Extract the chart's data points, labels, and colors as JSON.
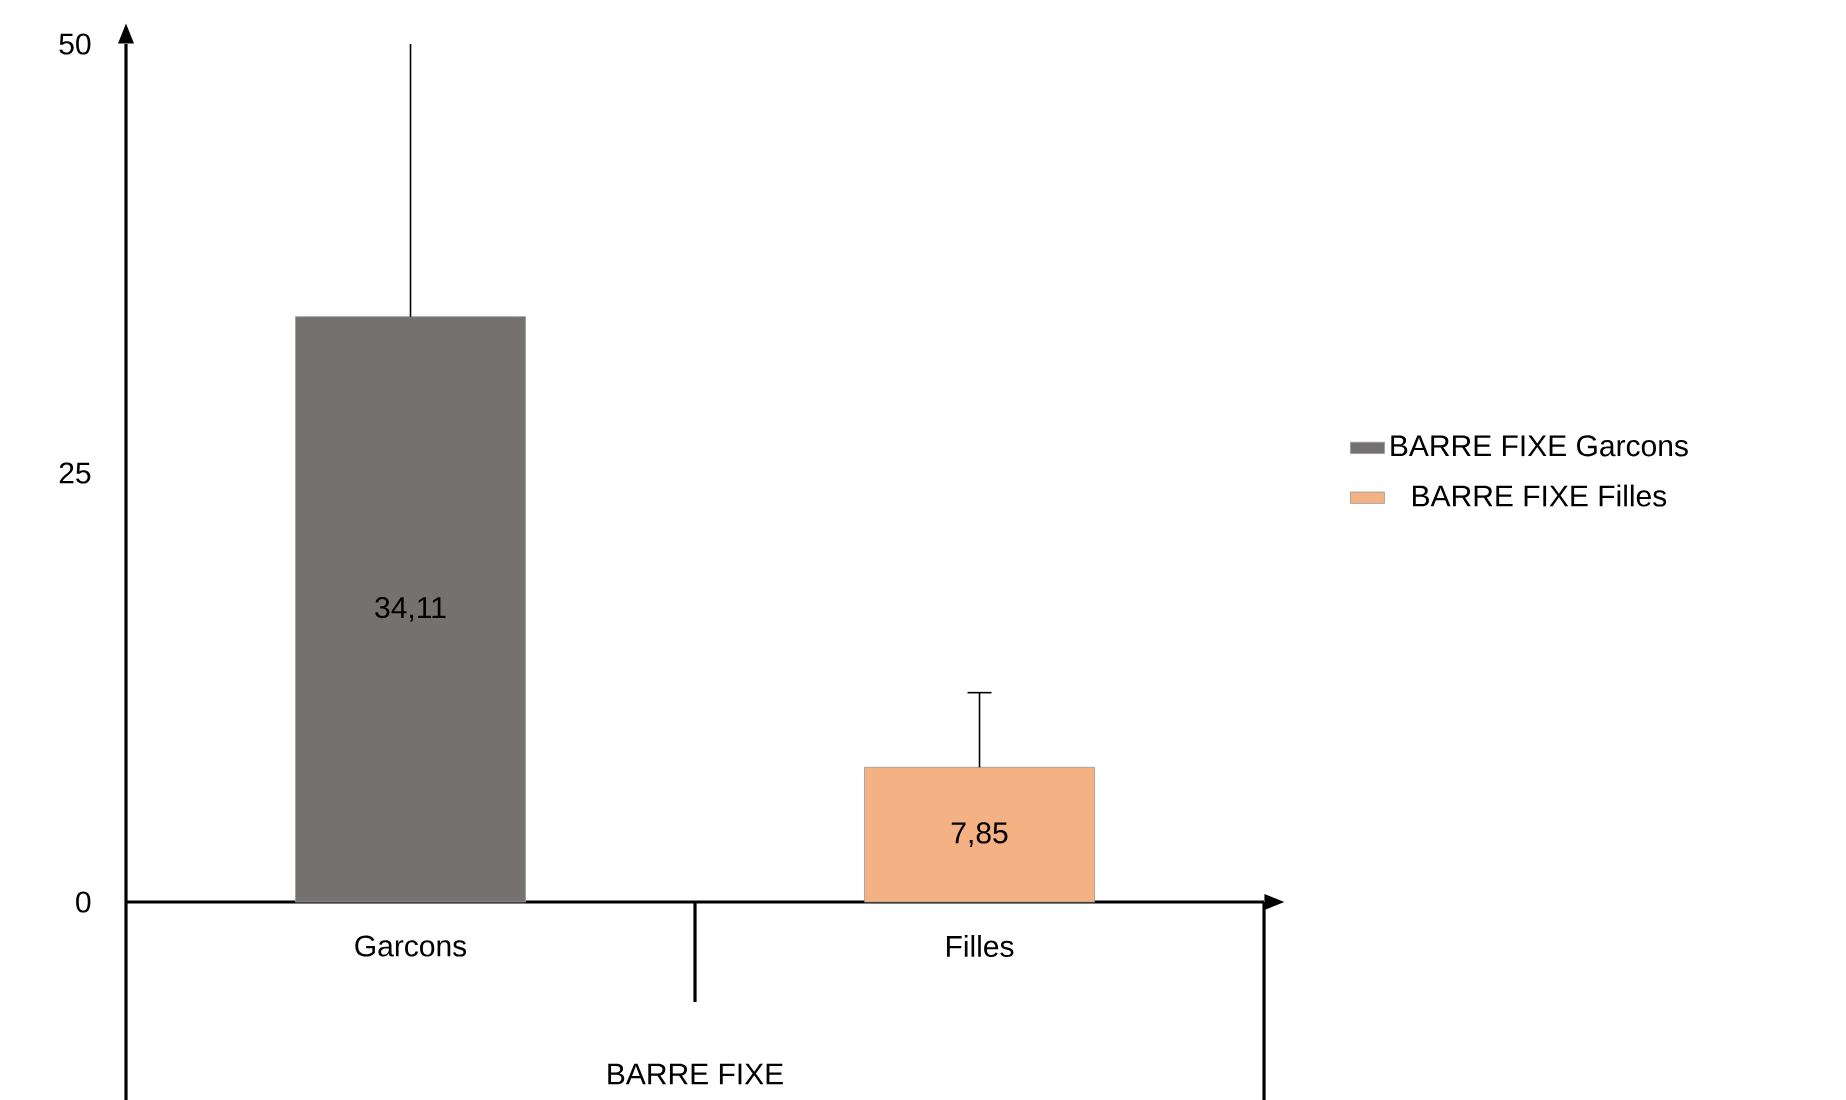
{
  "chart_data": {
    "type": "bar",
    "categories": [
      "Garcons",
      "Filles"
    ],
    "xlabel": "BARRE FIXE",
    "series": [
      {
        "name": "BARRE FIXE  Garcons",
        "color": "#767171",
        "values": [
          34.11,
          null
        ],
        "value_labels": [
          "34,11",
          null
        ],
        "errors": [
          [
            34.11,
            50
          ],
          null
        ]
      },
      {
        "name": "BARRE FIXE  Filles",
        "color": "#f4b183",
        "values": [
          null,
          7.85
        ],
        "value_labels": [
          null,
          "7,85"
        ],
        "errors": [
          null,
          [
            7.85,
            12.2
          ]
        ]
      }
    ],
    "ylim": [
      0,
      50
    ],
    "yticks": [
      0,
      25,
      50
    ],
    "grid": false,
    "legend": "right"
  }
}
